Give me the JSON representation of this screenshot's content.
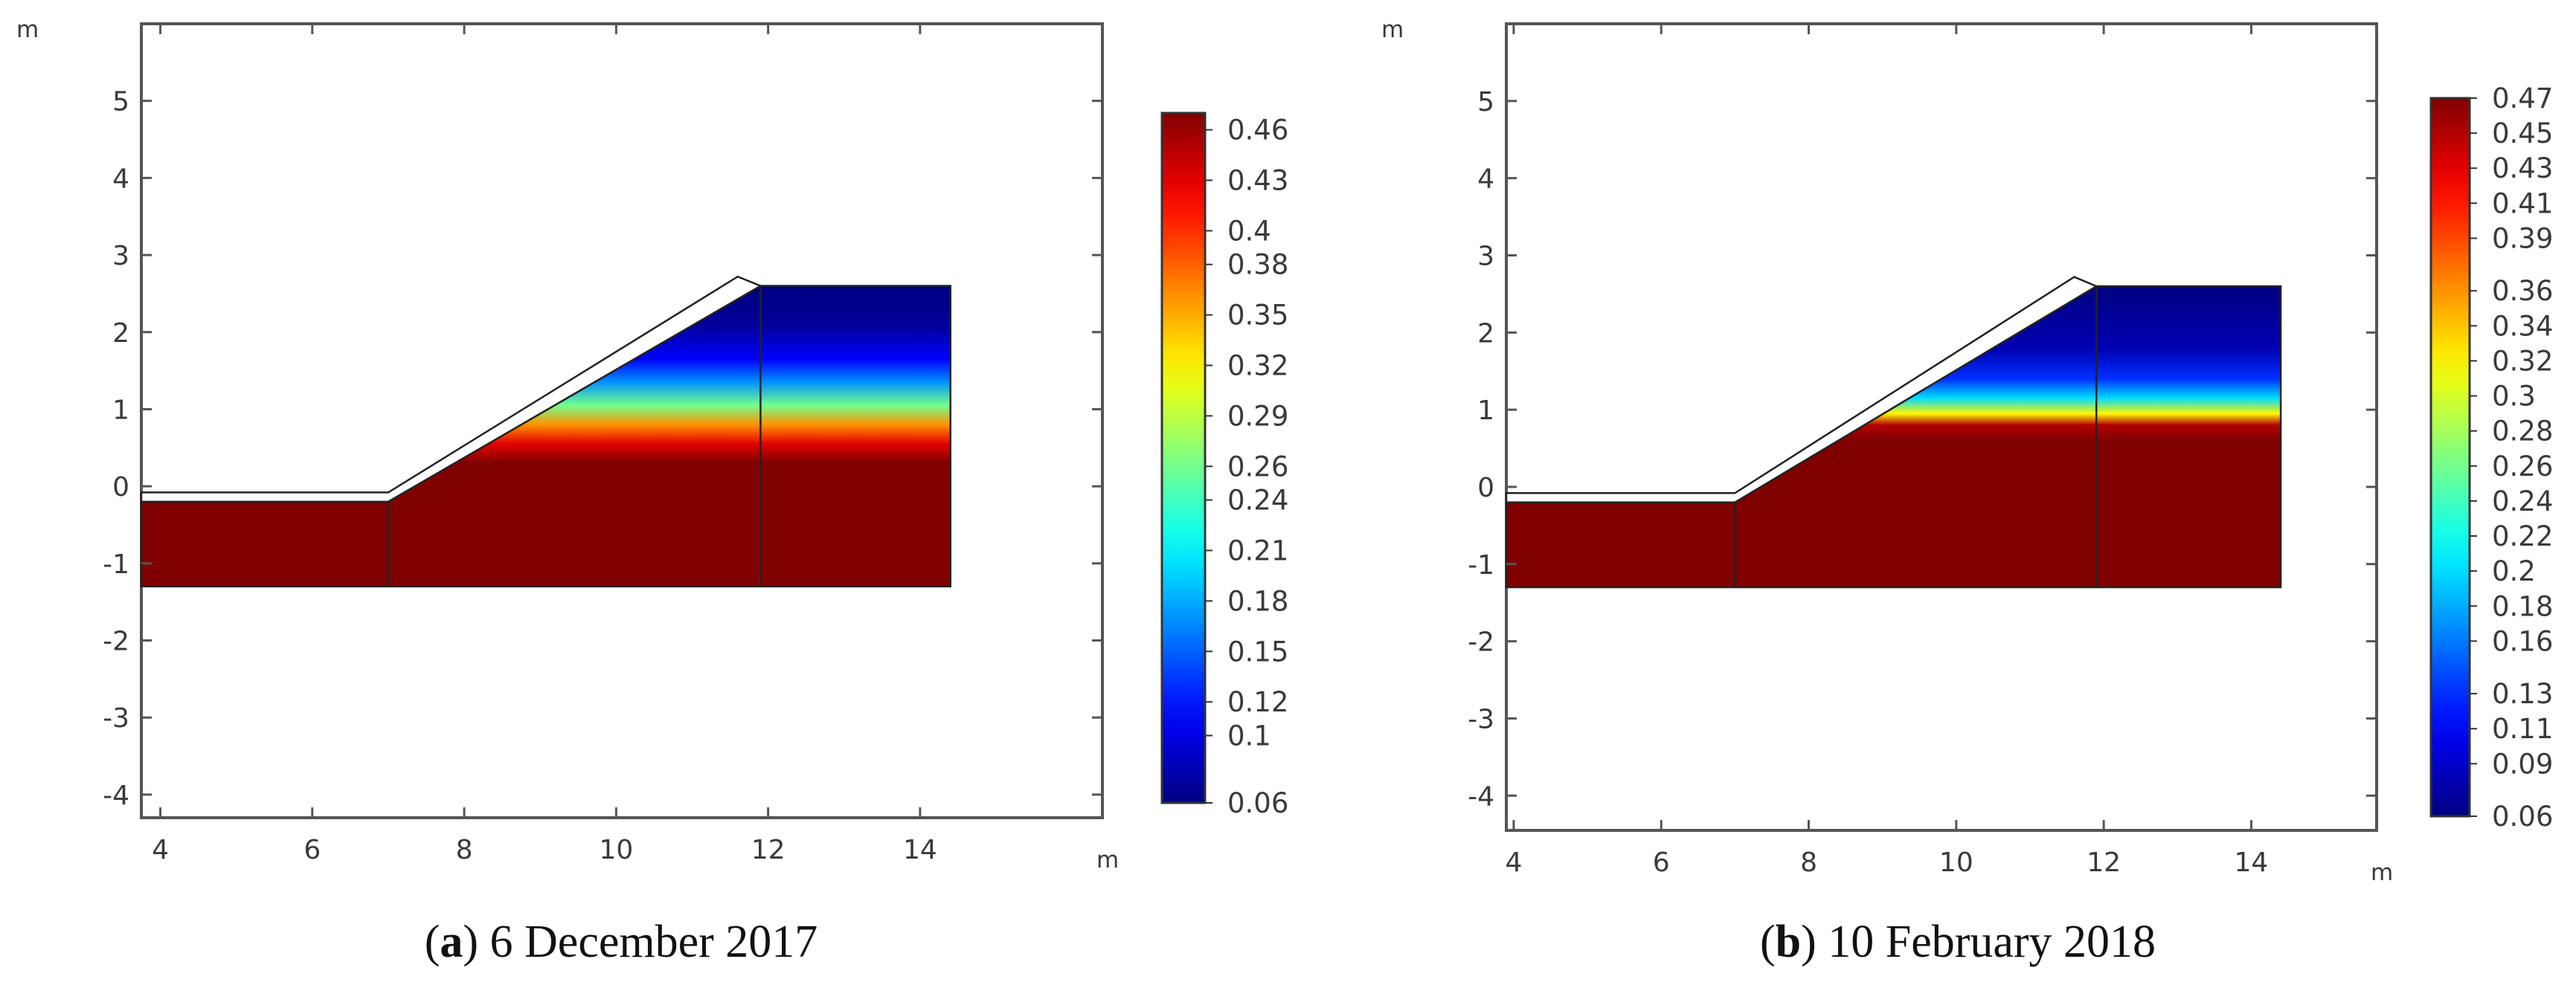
{
  "chart_data": [
    {
      "type": "heatmap",
      "caption": {
        "letter": "a",
        "text": "6 December 2017"
      },
      "x_unit": "m",
      "y_unit": "m",
      "xticks": [
        4,
        6,
        8,
        10,
        12,
        14
      ],
      "yticks": [
        5,
        4,
        3,
        2,
        1,
        0,
        -1,
        -2,
        -3,
        -4
      ],
      "xlim": [
        3.75,
        16.4
      ],
      "ylim": [
        -4.3,
        6.0
      ],
      "geometry": {
        "lower_block": {
          "x": [
            3.75,
            7.0
          ],
          "y": [
            -1.3,
            -0.2
          ]
        },
        "slope_region": {
          "x": [
            7.0,
            11.9
          ],
          "y_bottom": -1.3,
          "slope_top": [
            [
              7.0,
              -0.2
            ],
            [
              11.9,
              2.6
            ]
          ]
        },
        "crest_block": {
          "x": [
            11.9,
            14.4
          ],
          "y": [
            -1.3,
            2.6
          ]
        },
        "cover_layer_thickness": 0.12
      },
      "field_profile": {
        "description": "volumetric water content vs elevation",
        "points": [
          [
            2.6,
            0.06
          ],
          [
            2.1,
            0.07
          ],
          [
            1.65,
            0.11
          ],
          [
            1.35,
            0.17
          ],
          [
            1.05,
            0.26
          ],
          [
            0.8,
            0.36
          ],
          [
            0.55,
            0.43
          ],
          [
            0.3,
            0.47
          ],
          [
            -1.3,
            0.47
          ]
        ]
      },
      "colorbar": {
        "min": 0.06,
        "max": 0.47,
        "labels": [
          "0.46",
          "0.43",
          "0.4",
          "0.38",
          "0.35",
          "0.32",
          "0.29",
          "0.26",
          "0.24",
          "0.21",
          "0.18",
          "0.15",
          "0.12",
          "0.1",
          "0.06"
        ]
      }
    },
    {
      "type": "heatmap",
      "caption": {
        "letter": "b",
        "text": "10 February 2018"
      },
      "x_unit": "m",
      "y_unit": "m",
      "xticks": [
        4,
        6,
        8,
        10,
        12,
        14
      ],
      "yticks": [
        5,
        4,
        3,
        2,
        1,
        0,
        -1,
        -2,
        -3,
        -4
      ],
      "xlim": [
        3.9,
        15.7
      ],
      "ylim": [
        -4.45,
        6.0
      ],
      "geometry": {
        "lower_block": {
          "x": [
            3.9,
            7.0
          ],
          "y": [
            -1.3,
            -0.2
          ]
        },
        "slope_region": {
          "x": [
            7.0,
            11.9
          ],
          "y_bottom": -1.3,
          "slope_top": [
            [
              7.0,
              -0.2
            ],
            [
              11.9,
              2.6
            ]
          ]
        },
        "crest_block": {
          "x": [
            11.9,
            14.4
          ],
          "y": [
            -1.3,
            2.6
          ]
        },
        "cover_layer_thickness": 0.12
      },
      "field_profile": {
        "description": "volumetric water content vs elevation",
        "points": [
          [
            2.6,
            0.06
          ],
          [
            1.8,
            0.08
          ],
          [
            1.4,
            0.13
          ],
          [
            1.15,
            0.2
          ],
          [
            0.95,
            0.32
          ],
          [
            0.8,
            0.45
          ],
          [
            0.6,
            0.47
          ],
          [
            -1.3,
            0.47
          ]
        ]
      },
      "colorbar": {
        "min": 0.06,
        "max": 0.47,
        "labels": [
          "0.47",
          "0.45",
          "0.43",
          "0.41",
          "0.39",
          "0.36",
          "0.34",
          "0.32",
          "0.3",
          "0.28",
          "0.26",
          "0.24",
          "0.22",
          "0.2",
          "0.18",
          "0.16",
          "0.13",
          "0.11",
          "0.09",
          "0.06"
        ]
      }
    }
  ]
}
